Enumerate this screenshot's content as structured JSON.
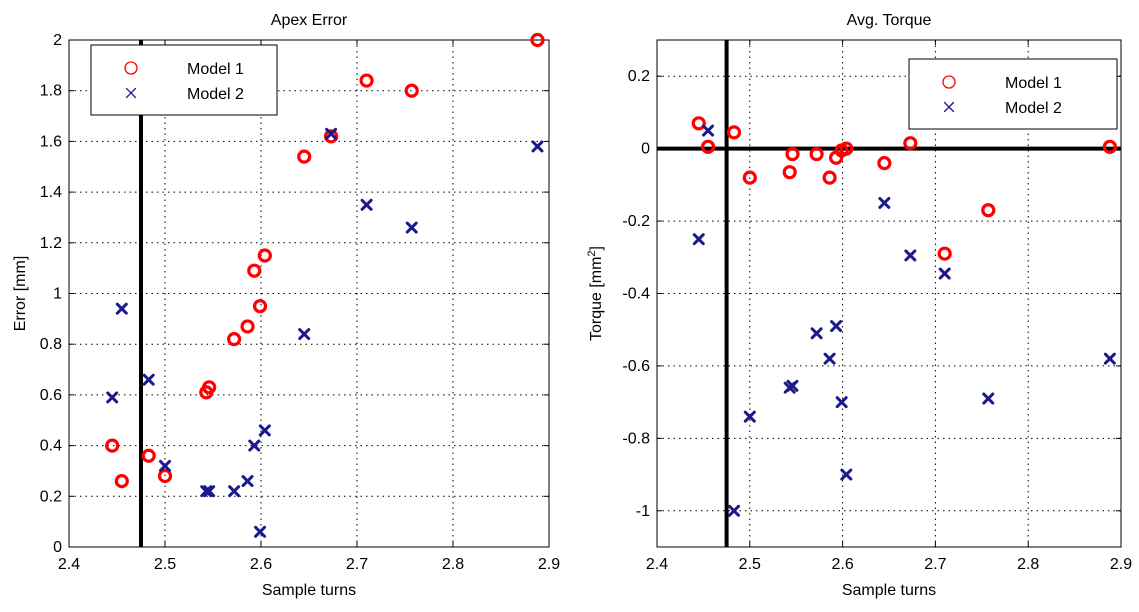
{
  "chart_data": [
    {
      "type": "scatter",
      "title": "Apex Error",
      "xlabel": "Sample turns",
      "ylabel": "Error [mm]",
      "xlim": [
        2.4,
        2.9
      ],
      "ylim": [
        0,
        2
      ],
      "xticks": [
        2.4,
        2.5,
        2.6,
        2.7,
        2.8,
        2.9
      ],
      "xtick_labels": [
        "2.4",
        "2.5",
        "2.6",
        "2.7",
        "2.8",
        "2.9"
      ],
      "yticks": [
        0,
        0.2,
        0.4,
        0.6,
        0.8,
        1,
        1.2,
        1.4,
        1.6,
        1.8,
        2
      ],
      "ytick_labels": [
        "0",
        "0.2",
        "0.4",
        "0.6",
        "0.8",
        "1",
        "1.2",
        "1.4",
        "1.6",
        "1.8",
        "2"
      ],
      "grid": true,
      "legend_position": "top-left",
      "reference_lines": {
        "vertical_x": 2.475
      },
      "series": [
        {
          "name": "Model 1",
          "marker": "circle",
          "color": "#ff0000",
          "points": [
            [
              2.445,
              0.4
            ],
            [
              2.455,
              0.26
            ],
            [
              2.483,
              0.36
            ],
            [
              2.5,
              0.28
            ],
            [
              2.543,
              0.61
            ],
            [
              2.546,
              0.63
            ],
            [
              2.572,
              0.82
            ],
            [
              2.586,
              0.87
            ],
            [
              2.593,
              1.09
            ],
            [
              2.599,
              0.95
            ],
            [
              2.604,
              1.15
            ],
            [
              2.645,
              1.54
            ],
            [
              2.673,
              1.62
            ],
            [
              2.71,
              1.84
            ],
            [
              2.757,
              1.8
            ],
            [
              2.888,
              2.0
            ]
          ]
        },
        {
          "name": "Model 2",
          "marker": "x",
          "color": "#1a1a8c",
          "points": [
            [
              2.445,
              0.59
            ],
            [
              2.455,
              0.94
            ],
            [
              2.483,
              0.66
            ],
            [
              2.5,
              0.32
            ],
            [
              2.543,
              0.22
            ],
            [
              2.546,
              0.22
            ],
            [
              2.572,
              0.22
            ],
            [
              2.586,
              0.26
            ],
            [
              2.593,
              0.4
            ],
            [
              2.599,
              0.06
            ],
            [
              2.604,
              0.46
            ],
            [
              2.645,
              0.84
            ],
            [
              2.673,
              1.63
            ],
            [
              2.71,
              1.35
            ],
            [
              2.757,
              1.26
            ],
            [
              2.888,
              1.58
            ]
          ]
        }
      ]
    },
    {
      "type": "scatter",
      "title": "Avg. Torque",
      "xlabel": "Sample turns",
      "ylabel": "Torque [mm",
      "ylabel_superscript": "2",
      "ylabel_suffix": "]",
      "xlim": [
        2.4,
        2.9
      ],
      "ylim": [
        -1.1,
        0.3
      ],
      "xticks": [
        2.4,
        2.5,
        2.6,
        2.7,
        2.8,
        2.9
      ],
      "xtick_labels": [
        "2.4",
        "2.5",
        "2.6",
        "2.7",
        "2.8",
        "2.9"
      ],
      "yticks": [
        -1,
        -0.8,
        -0.6,
        -0.4,
        -0.2,
        0,
        0.2
      ],
      "ytick_labels": [
        "-1",
        "-0.8",
        "-0.6",
        "-0.4",
        "-0.2",
        "0",
        "0.2"
      ],
      "grid": true,
      "legend_position": "top-right",
      "reference_lines": {
        "vertical_x": 2.475,
        "horizontal_y": 0
      },
      "series": [
        {
          "name": "Model 1",
          "marker": "circle",
          "color": "#ff0000",
          "points": [
            [
              2.445,
              0.07
            ],
            [
              2.455,
              0.005
            ],
            [
              2.483,
              0.045
            ],
            [
              2.5,
              -0.08
            ],
            [
              2.543,
              -0.065
            ],
            [
              2.546,
              -0.015
            ],
            [
              2.572,
              -0.015
            ],
            [
              2.586,
              -0.08
            ],
            [
              2.593,
              -0.025
            ],
            [
              2.599,
              -0.005
            ],
            [
              2.604,
              0.0
            ],
            [
              2.645,
              -0.04
            ],
            [
              2.673,
              0.015
            ],
            [
              2.71,
              -0.29
            ],
            [
              2.757,
              -0.17
            ],
            [
              2.888,
              0.005
            ]
          ]
        },
        {
          "name": "Model 2",
          "marker": "x",
          "color": "#1a1a8c",
          "points": [
            [
              2.445,
              -0.25
            ],
            [
              2.455,
              0.05
            ],
            [
              2.483,
              -1.0
            ],
            [
              2.5,
              -0.74
            ],
            [
              2.543,
              -0.66
            ],
            [
              2.546,
              -0.655
            ],
            [
              2.572,
              -0.51
            ],
            [
              2.586,
              -0.58
            ],
            [
              2.593,
              -0.49
            ],
            [
              2.599,
              -0.7
            ],
            [
              2.604,
              -0.9
            ],
            [
              2.645,
              -0.15
            ],
            [
              2.673,
              -0.295
            ],
            [
              2.71,
              -0.345
            ],
            [
              2.757,
              -0.69
            ],
            [
              2.888,
              -0.58
            ]
          ]
        }
      ]
    }
  ]
}
